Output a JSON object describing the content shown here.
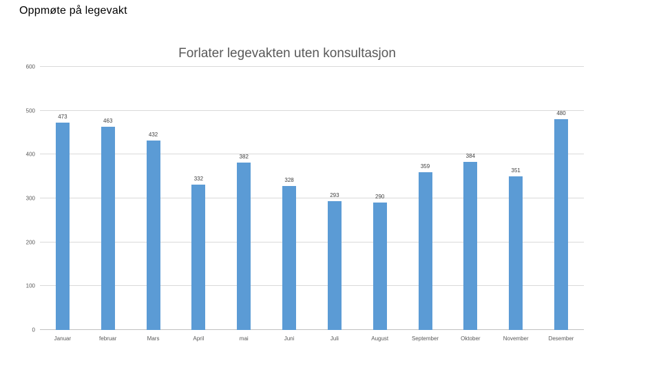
{
  "page": {
    "title": "Oppmøte på legevakt"
  },
  "chart_data": {
    "type": "bar",
    "title": "Forlater legevakten uten konsultasjon",
    "categories": [
      "Januar",
      "februar",
      "Mars",
      "April",
      "mai",
      "Juni",
      "Juli",
      "August",
      "September",
      "Oktober",
      "November",
      "Desember"
    ],
    "values": [
      473,
      463,
      432,
      332,
      382,
      328,
      293,
      290,
      359,
      384,
      351,
      480
    ],
    "xlabel": "",
    "ylabel": "",
    "ylim": [
      0,
      600
    ],
    "yticks": [
      0,
      100,
      200,
      300,
      400,
      500,
      600
    ],
    "grid": true,
    "legend": false,
    "data_labels": true,
    "colors": {
      "bar": "#5b9bd5",
      "gridline": "#d9d9d9",
      "title": "#595959",
      "axis_labels": "#595959",
      "data_labels": "#404040"
    }
  }
}
